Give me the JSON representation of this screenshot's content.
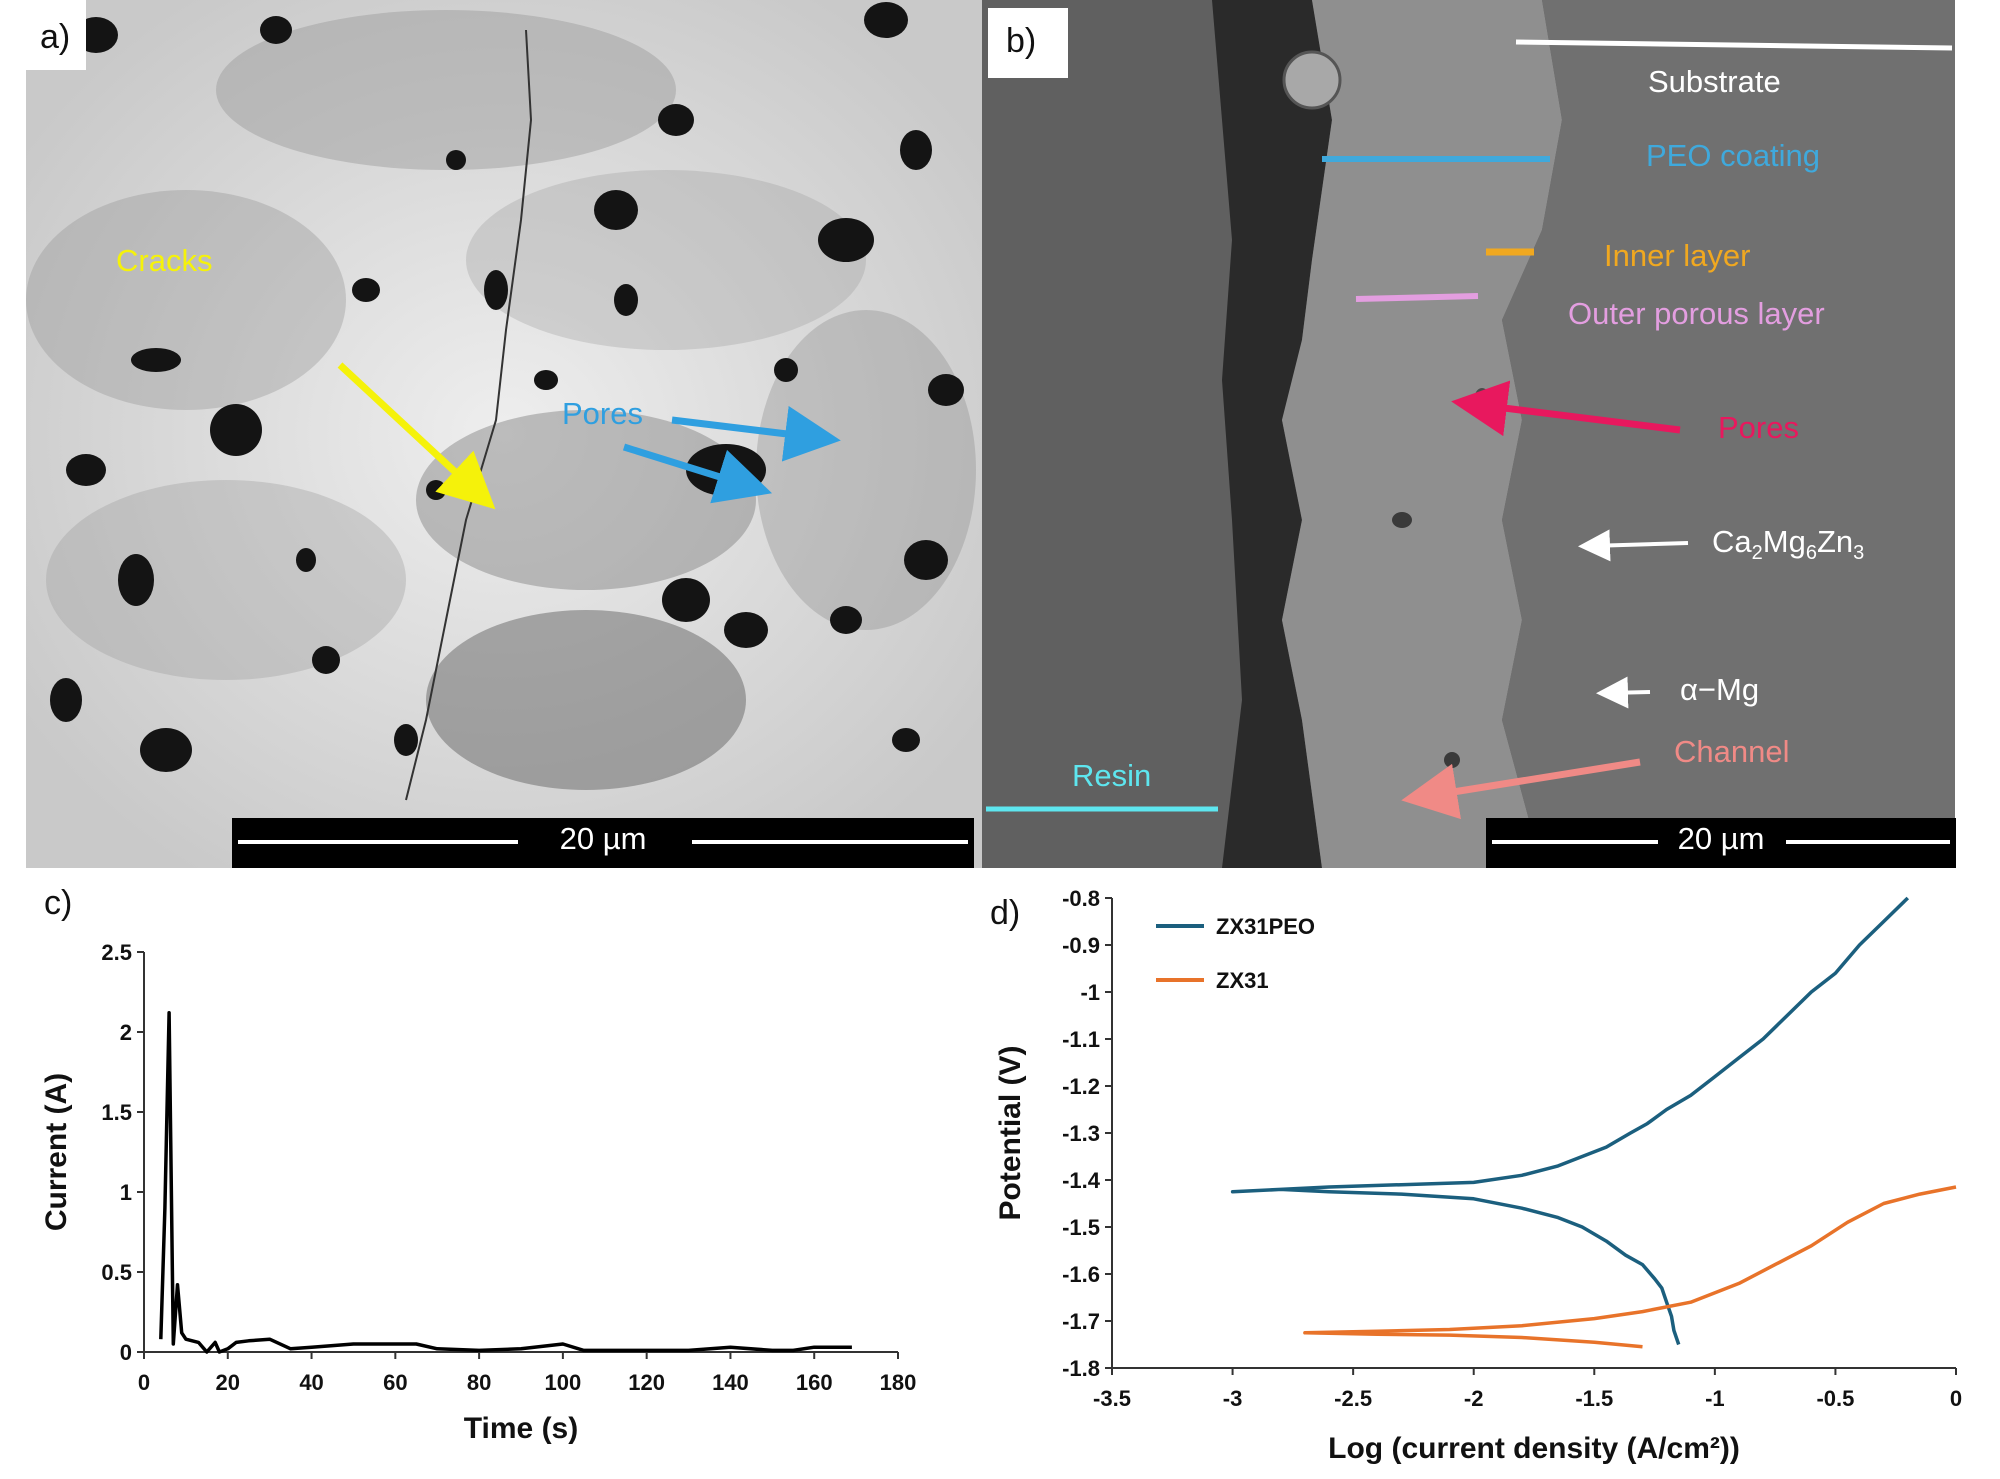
{
  "panels": {
    "a": {
      "letter": "a)",
      "scale_bar": "20 µm",
      "labels": {
        "cracks": "Cracks",
        "pores": "Pores"
      },
      "colors": {
        "cracks": "#f5f20a",
        "pores": "#2f9fe0"
      }
    },
    "b": {
      "letter": "b)",
      "scale_bar": "20 µm",
      "labels": {
        "substrate": "Substrate",
        "peo_coating": "PEO coating",
        "inner_layer": "Inner layer",
        "outer_porous_layer": "Outer porous layer",
        "pores": "Pores",
        "ca2mg6zn3": "Ca2Mg6Zn3",
        "alpha_mg": "α−Mg",
        "channel": "Channel",
        "resin": "Resin"
      },
      "colors": {
        "substrate": "#ffffff",
        "peo_coating": "#3fa9dc",
        "inner_layer": "#f0a820",
        "outer_porous_layer": "#e39ee0",
        "pores": "#e8185e",
        "phase": "#ffffff",
        "channel": "#f08a86",
        "resin": "#5ee6ef"
      }
    },
    "c": {
      "letter": "c)"
    },
    "d": {
      "letter": "d)"
    }
  },
  "chart_data": [
    {
      "type": "line",
      "panel": "c",
      "xlabel": "Time (s)",
      "ylabel": "Current (A)",
      "xlim": [
        0,
        180
      ],
      "ylim": [
        0,
        2.5
      ],
      "xticks": [
        0,
        20,
        40,
        60,
        80,
        100,
        120,
        140,
        160,
        180
      ],
      "yticks": [
        0,
        0.5,
        1,
        1.5,
        2,
        2.5
      ],
      "grid": false,
      "series": [
        {
          "color": "#000000",
          "x": [
            4,
            5,
            6,
            7,
            8,
            9,
            10,
            13,
            15,
            17,
            18,
            20,
            22,
            25,
            30,
            35,
            40,
            50,
            60,
            65,
            70,
            80,
            90,
            100,
            105,
            110,
            120,
            130,
            140,
            150,
            155,
            160,
            165,
            169
          ],
          "y": [
            0.08,
            0.9,
            2.12,
            0.05,
            0.42,
            0.12,
            0.08,
            0.06,
            0.0,
            0.06,
            0.0,
            0.02,
            0.06,
            0.07,
            0.08,
            0.02,
            0.03,
            0.05,
            0.05,
            0.05,
            0.02,
            0.01,
            0.02,
            0.05,
            0.01,
            0.01,
            0.01,
            0.01,
            0.03,
            0.01,
            0.01,
            0.03,
            0.03,
            0.03
          ]
        }
      ]
    },
    {
      "type": "line",
      "panel": "d",
      "xlabel": "Log (current density (A/cm²))",
      "ylabel": "Potential (V)",
      "xlim": [
        -3.5,
        0
      ],
      "ylim": [
        -1.8,
        -0.8
      ],
      "xticks": [
        -3.5,
        -3,
        -2.5,
        -2,
        -1.5,
        -1,
        -0.5,
        0
      ],
      "xtick_labels": [
        "-3.5",
        "-3",
        "-2.5",
        "-2",
        "-1.5",
        "-1",
        "-0.5",
        "0"
      ],
      "yticks": [
        -1.8,
        -1.7,
        -1.6,
        -1.5,
        -1.4,
        -1.3,
        -1.2,
        -1.1,
        -1,
        -0.9,
        -0.8
      ],
      "ytick_labels": [
        "-1.8",
        "-1.7",
        "-1.6",
        "-1.5",
        "-1.4",
        "-1.3",
        "-1.2",
        "-1.1",
        "-1",
        "-0.9",
        "-0.8"
      ],
      "legend_position": "top-left",
      "grid": false,
      "series": [
        {
          "name": "ZX31PEO",
          "color": "#1b5f7e",
          "x": [
            -1.15,
            -1.17,
            -1.18,
            -1.2,
            -1.22,
            -1.25,
            -1.3,
            -1.37,
            -1.45,
            -1.55,
            -1.65,
            -1.8,
            -2.0,
            -2.3,
            -2.6,
            -2.8,
            -3.0,
            -2.8,
            -2.6,
            -2.3,
            -2.0,
            -1.8,
            -1.65,
            -1.55,
            -1.45,
            -1.35,
            -1.28,
            -1.2,
            -1.1,
            -1.0,
            -0.9,
            -0.8,
            -0.7,
            -0.6,
            -0.5,
            -0.4,
            -0.3,
            -0.2
          ],
          "y": [
            -1.75,
            -1.72,
            -1.69,
            -1.66,
            -1.63,
            -1.61,
            -1.58,
            -1.56,
            -1.53,
            -1.5,
            -1.48,
            -1.46,
            -1.44,
            -1.43,
            -1.425,
            -1.42,
            -1.425,
            -1.42,
            -1.415,
            -1.41,
            -1.405,
            -1.39,
            -1.37,
            -1.35,
            -1.33,
            -1.3,
            -1.28,
            -1.25,
            -1.22,
            -1.18,
            -1.14,
            -1.1,
            -1.05,
            -1.0,
            -0.96,
            -0.9,
            -0.85,
            -0.8
          ]
        },
        {
          "name": "ZX31",
          "color": "#e8732a",
          "x": [
            -1.3,
            -1.5,
            -1.8,
            -2.1,
            -2.4,
            -2.7,
            -2.4,
            -2.1,
            -1.8,
            -1.5,
            -1.3,
            -1.1,
            -0.9,
            -0.75,
            -0.6,
            -0.45,
            -0.3,
            -0.15,
            0.0
          ],
          "y": [
            -1.755,
            -1.745,
            -1.735,
            -1.73,
            -1.728,
            -1.725,
            -1.722,
            -1.718,
            -1.71,
            -1.695,
            -1.68,
            -1.66,
            -1.62,
            -1.58,
            -1.54,
            -1.49,
            -1.45,
            -1.43,
            -1.415
          ]
        }
      ]
    }
  ]
}
